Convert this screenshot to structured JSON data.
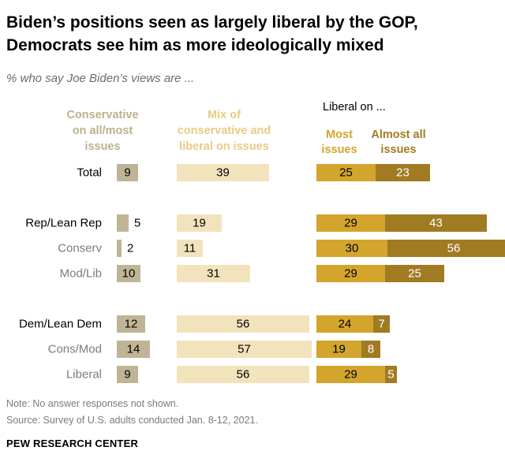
{
  "title_line1": "Biden’s positions seen as largely liberal by the GOP,",
  "title_line2": "Democrats see him as more ideologically mixed",
  "subtitle": "% who say Joe Biden’s views are ...",
  "note": "Note: No answer responses not shown.",
  "source": "Source: Survey of U.S. adults conducted Jan. 8-12, 2021.",
  "brand": "PEW RESEARCH CENTER",
  "colors": {
    "conservative": "#bfb596",
    "mix": "#f3e3bd",
    "most": "#d3a52c",
    "almost_all": "#a07b22",
    "label_cons": "#bdb28c",
    "label_mix": "#e8cc84",
    "label_most": "#d3a52c",
    "label_almost": "#a07b22",
    "muted_row": "#7b7b7b"
  },
  "chart_data": {
    "type": "bar",
    "title": "Biden’s positions seen as largely liberal by the GOP, Democrats see him as more ideologically mixed",
    "column_headers": {
      "conservative": [
        "Conservative",
        "on all/most",
        "issues"
      ],
      "mix": [
        "Mix of",
        "conservative and",
        "liberal on issues"
      ],
      "liberal_group": "Liberal on ...",
      "most": [
        "Most",
        "issues"
      ],
      "almost_all": [
        "Almost all",
        "issues"
      ]
    },
    "categories": [
      "Total",
      "Rep/Lean Rep",
      "Conserv",
      "Mod/Lib",
      "Dem/Lean Dem",
      "Cons/Mod",
      "Liberal"
    ],
    "category_is_subgroup": [
      false,
      false,
      true,
      true,
      false,
      true,
      true
    ],
    "series": [
      {
        "name": "Conservative on all/most issues",
        "values": [
          9,
          5,
          2,
          10,
          12,
          14,
          9
        ]
      },
      {
        "name": "Mix of conservative and liberal on issues",
        "values": [
          39,
          19,
          11,
          31,
          56,
          57,
          56
        ]
      },
      {
        "name": "Liberal on most issues",
        "values": [
          25,
          29,
          30,
          29,
          24,
          19,
          29
        ]
      },
      {
        "name": "Liberal on almost all issues",
        "values": [
          23,
          43,
          56,
          25,
          7,
          8,
          5
        ]
      }
    ]
  }
}
